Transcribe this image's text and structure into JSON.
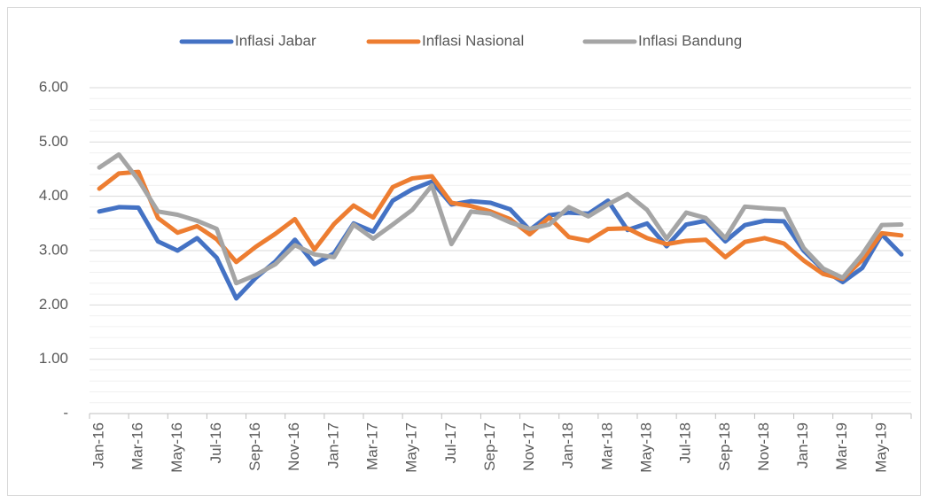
{
  "chart_data": {
    "type": "line",
    "categories": [
      "Jan-16",
      null,
      "Mar-16",
      null,
      "May-16",
      null,
      "Jul-16",
      null,
      "Sep-16",
      null,
      "Nov-16",
      null,
      "Jan-17",
      null,
      "Mar-17",
      null,
      "May-17",
      null,
      "Jul-17",
      null,
      "Sep-17",
      null,
      "Nov-17",
      null,
      "Jan-18",
      null,
      "Mar-18",
      null,
      "May-18",
      null,
      "Jul-18",
      null,
      "Sep-18",
      null,
      "Nov-18",
      null,
      "Jan-19",
      null,
      "Mar-19",
      null,
      "May-19",
      null
    ],
    "series": [
      {
        "name": "Inflasi Jabar",
        "color": "#4472c4",
        "values": [
          3.72,
          3.8,
          3.79,
          3.17,
          3.0,
          3.23,
          2.87,
          2.12,
          2.5,
          2.8,
          3.2,
          2.75,
          2.95,
          3.5,
          3.35,
          3.92,
          4.13,
          4.27,
          3.85,
          3.91,
          3.88,
          3.76,
          3.38,
          3.65,
          3.7,
          3.68,
          3.92,
          3.38,
          3.5,
          3.08,
          3.48,
          3.55,
          3.17,
          3.47,
          3.55,
          3.54,
          3.0,
          2.65,
          2.42,
          2.68,
          3.3,
          2.93
        ]
      },
      {
        "name": "Inflasi Nasional",
        "color": "#ed7d31",
        "values": [
          4.14,
          4.42,
          4.45,
          3.6,
          3.33,
          3.45,
          3.21,
          2.79,
          3.07,
          3.31,
          3.58,
          3.02,
          3.49,
          3.83,
          3.61,
          4.17,
          4.33,
          4.37,
          3.88,
          3.82,
          3.72,
          3.58,
          3.3,
          3.61,
          3.25,
          3.18,
          3.4,
          3.41,
          3.23,
          3.12,
          3.18,
          3.2,
          2.88,
          3.16,
          3.23,
          3.13,
          2.82,
          2.57,
          2.48,
          2.83,
          3.32,
          3.28
        ]
      },
      {
        "name": "Inflasi Bandung",
        "color": "#a5a5a5",
        "values": [
          4.53,
          4.77,
          4.3,
          3.72,
          3.66,
          3.55,
          3.4,
          2.4,
          2.55,
          2.75,
          3.1,
          2.93,
          2.88,
          3.48,
          3.22,
          3.48,
          3.75,
          4.2,
          3.12,
          3.72,
          3.68,
          3.52,
          3.4,
          3.48,
          3.8,
          3.63,
          3.85,
          4.04,
          3.75,
          3.22,
          3.7,
          3.6,
          3.23,
          3.81,
          3.78,
          3.76,
          3.05,
          2.67,
          2.5,
          2.93,
          3.47,
          3.48
        ]
      }
    ],
    "ylim": [
      0,
      6
    ],
    "yticks": [
      {
        "value": 0,
        "label": "-"
      },
      {
        "value": 1,
        "label": "1.00"
      },
      {
        "value": 2,
        "label": "2.00"
      },
      {
        "value": 3,
        "label": "3.00"
      },
      {
        "value": 4,
        "label": "4.00"
      },
      {
        "value": 5,
        "label": "5.00"
      },
      {
        "value": 6,
        "label": "6.00"
      }
    ],
    "yminorticks": [
      0.2,
      0.4,
      0.6,
      0.8,
      1.2,
      1.4,
      1.6,
      1.8,
      2.2,
      2.4,
      2.6,
      2.8,
      3.2,
      3.4,
      3.6,
      3.8,
      4.2,
      4.4,
      4.6,
      4.8,
      5.2,
      5.4,
      5.6,
      5.8
    ],
    "grid": true,
    "legend": "top"
  }
}
